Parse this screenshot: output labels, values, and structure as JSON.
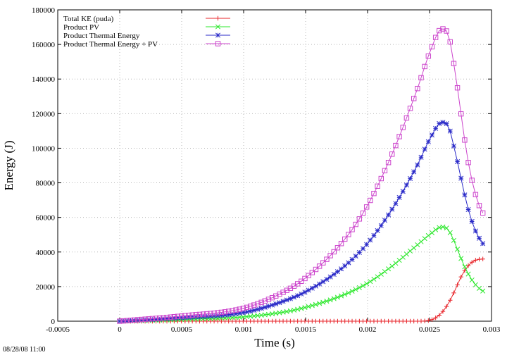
{
  "chart_data": {
    "type": "line",
    "xlabel": "Time (s)",
    "ylabel": "Energy (J)",
    "xlim": [
      -0.0005,
      0.003
    ],
    "ylim": [
      0,
      180000
    ],
    "xticks": [
      "-0.0005",
      "0",
      "0.0005",
      "0.001",
      "0.0015",
      "0.002",
      "0.0025",
      "0.003"
    ],
    "yticks": [
      "0",
      "20000",
      "40000",
      "60000",
      "80000",
      "100000",
      "120000",
      "140000",
      "160000",
      "180000"
    ],
    "grid": true,
    "legend_position": "top-left",
    "timestamp": "08/28/08 11:00",
    "series": [
      {
        "name": "Total KE (puda)",
        "color": "#e8242a",
        "marker": "plus",
        "x": [
          0,
          0.0005,
          0.001,
          0.0015,
          0.002,
          0.0023,
          0.0024,
          0.0025,
          0.00255,
          0.0026,
          0.00265,
          0.0027,
          0.00275,
          0.0028,
          0.00285,
          0.0029,
          0.00295
        ],
        "y": [
          0,
          0,
          0,
          0,
          0,
          0,
          0,
          500,
          2000,
          5000,
          10000,
          17000,
          25000,
          31000,
          34500,
          35800,
          36000
        ]
      },
      {
        "name": "Product PV",
        "color": "#2ee82e",
        "marker": "x",
        "x": [
          0,
          0.0005,
          0.001,
          0.0013,
          0.0015,
          0.0018,
          0.002,
          0.0022,
          0.0024,
          0.0025,
          0.0026,
          0.00265,
          0.0027,
          0.00275,
          0.0028,
          0.00285,
          0.0029,
          0.00295
        ],
        "y": [
          0,
          1000,
          2500,
          5000,
          8000,
          15000,
          22000,
          32000,
          44000,
          50000,
          54500,
          53000,
          46000,
          37000,
          29000,
          23000,
          19000,
          16500
        ]
      },
      {
        "name": "Product Thermal Energy",
        "color": "#2a2ac8",
        "marker": "star",
        "x": [
          0,
          0.0005,
          0.001,
          0.0013,
          0.0015,
          0.0018,
          0.002,
          0.0022,
          0.0024,
          0.0025,
          0.0026,
          0.00265,
          0.0027,
          0.00275,
          0.0028,
          0.00285,
          0.0029,
          0.00295
        ],
        "y": [
          0,
          2000,
          5000,
          11000,
          17000,
          31000,
          45000,
          65000,
          90000,
          105000,
          115000,
          113000,
          100000,
          84000,
          68000,
          56000,
          48000,
          43000
        ]
      },
      {
        "name": "Product Thermal Energy + PV",
        "color": "#cc44cc",
        "marker": "square",
        "x": [
          0,
          0.0005,
          0.001,
          0.0013,
          0.0015,
          0.0018,
          0.002,
          0.0022,
          0.0024,
          0.0025,
          0.0026,
          0.00265,
          0.0027,
          0.00275,
          0.0028,
          0.00285,
          0.0029,
          0.00295
        ],
        "y": [
          0,
          3000,
          7500,
          16000,
          25000,
          46000,
          67000,
          97000,
          134000,
          155000,
          169000,
          166000,
          147000,
          122000,
          97000,
          79000,
          67000,
          60000
        ]
      }
    ]
  }
}
